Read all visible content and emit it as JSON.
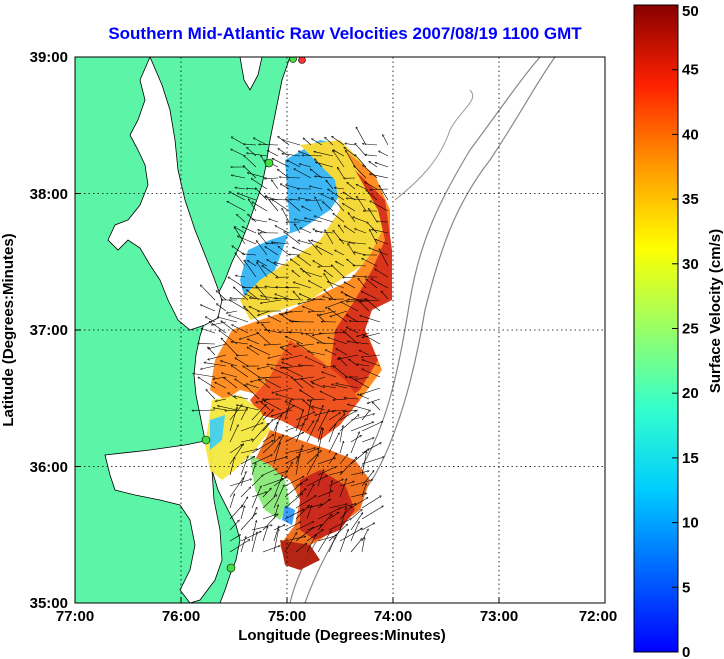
{
  "title": "Southern Mid-Atlantic Raw Velocities 2007/08/19 1100 GMT",
  "x_axis": {
    "label": "Longitude (Degrees:Minutes)",
    "ticks": [
      "77:00",
      "76:00",
      "75:00",
      "74:00",
      "73:00",
      "72:00"
    ]
  },
  "y_axis": {
    "label": "Latitude (Degrees:Minutes)",
    "ticks": [
      "39:00",
      "38:00",
      "37:00",
      "36:00",
      "35:00"
    ]
  },
  "colorbar": {
    "label": "Surface Velocity (cm/s)",
    "ticks": [
      "50",
      "45",
      "40",
      "35",
      "30",
      "25",
      "20",
      "15",
      "10",
      "5",
      "0"
    ],
    "min": 0,
    "max": 50
  },
  "colors": {
    "land": "#5cf5a8",
    "water": "#ffffff",
    "title": "#0000ff",
    "station": "#44dd44",
    "station_alt": "#ff3333"
  },
  "map_extent": {
    "lon_west": 77,
    "lon_east": 72,
    "lat_south": 35,
    "lat_north": 39
  },
  "grid": true
}
